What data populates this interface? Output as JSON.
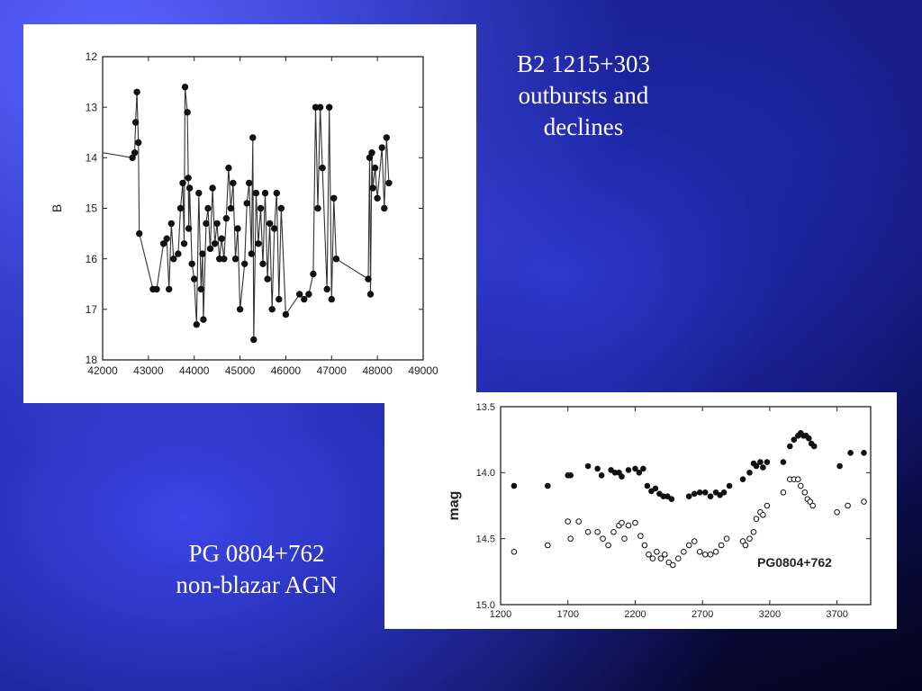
{
  "captions": {
    "top": [
      "B2 1215+303",
      "outbursts and",
      "declines"
    ],
    "bottom": [
      "PG 0804+762",
      "non-blazar AGN"
    ]
  },
  "chart_data": [
    {
      "type": "line",
      "ylabel": "B",
      "xlabel": "",
      "xlim": [
        42000,
        49000
      ],
      "ylim": [
        18,
        12
      ],
      "y_inverted": true,
      "xticks": [
        "42000",
        "43000",
        "44000",
        "45000",
        "46000",
        "47000",
        "48000",
        "49000"
      ],
      "yticks": [
        "12",
        "13",
        "14",
        "15",
        "16",
        "17",
        "18"
      ],
      "series": [
        {
          "x": [
            42000,
            42650,
            42700,
            42720,
            42750,
            42780,
            42800,
            43100,
            43180,
            43330,
            43400,
            43450,
            43500,
            43550,
            43650,
            43700,
            43750,
            43780,
            43800,
            43850,
            43870,
            43880,
            43900,
            43950,
            44000,
            44050,
            44100,
            44150,
            44180,
            44200,
            44260,
            44300,
            44350,
            44400,
            44450,
            44500,
            44550,
            44600,
            44650,
            44700,
            44750,
            44800,
            44850,
            44900,
            44950,
            45000,
            45100,
            45150,
            45200,
            45250,
            45280,
            45300,
            45350,
            45400,
            45450,
            45500,
            45550,
            45600,
            45650,
            45700,
            45750,
            45800,
            45850,
            45900,
            46000,
            46300,
            46400,
            46500,
            46600,
            46650,
            46700,
            46750,
            46800,
            46900,
            46950,
            47000,
            47050,
            47100,
            47800,
            47830,
            47850,
            47880,
            47900,
            47950,
            48000,
            48100,
            48150,
            48200,
            48250
          ],
          "y": [
            13.9,
            14.0,
            13.9,
            13.3,
            12.7,
            13.7,
            15.5,
            16.6,
            16.6,
            15.7,
            15.6,
            16.6,
            15.3,
            16.0,
            15.9,
            15.0,
            14.5,
            15.7,
            12.6,
            13.1,
            14.4,
            15.4,
            14.6,
            16.1,
            16.4,
            17.3,
            14.7,
            16.6,
            15.9,
            17.2,
            15.3,
            15.0,
            15.8,
            14.6,
            15.7,
            15.3,
            16.0,
            15.6,
            16.0,
            15.2,
            14.2,
            15.0,
            14.5,
            16.0,
            15.4,
            17.0,
            16.1,
            14.9,
            14.5,
            15.9,
            13.6,
            17.6,
            14.7,
            15.7,
            15.0,
            16.1,
            14.7,
            16.4,
            15.3,
            17.0,
            15.4,
            14.7,
            16.8,
            15.0,
            17.1,
            16.7,
            16.8,
            16.7,
            16.3,
            13.0,
            15.0,
            13.0,
            14.2,
            16.6,
            13.0,
            16.8,
            14.8,
            16.0,
            16.4,
            14.0,
            16.7,
            13.9,
            14.6,
            14.2,
            14.8,
            13.8,
            15.0,
            13.6,
            14.5
          ]
        }
      ]
    },
    {
      "type": "scatter",
      "ylabel": "mag",
      "xlabel": "",
      "annotation": "PG0804+762",
      "xlim": [
        1200,
        3950
      ],
      "ylim": [
        15.0,
        13.5
      ],
      "y_inverted": true,
      "xticks": [
        "1200",
        "1700",
        "2200",
        "2700",
        "3200",
        "3700"
      ],
      "yticks": [
        "13.5",
        "14.0",
        "14.5",
        "15.0"
      ],
      "series": [
        {
          "marker": "filled",
          "x": [
            1300,
            1550,
            1700,
            1720,
            1850,
            1920,
            1950,
            2020,
            2050,
            2080,
            2100,
            2150,
            2200,
            2230,
            2260,
            2290,
            2320,
            2350,
            2380,
            2410,
            2440,
            2470,
            2600,
            2640,
            2680,
            2720,
            2760,
            2800,
            2830,
            2860,
            2900,
            3000,
            3050,
            3080,
            3100,
            3130,
            3150,
            3180,
            3300,
            3350,
            3380,
            3410,
            3430,
            3450,
            3470,
            3490,
            3510,
            3530,
            3720,
            3800,
            3900
          ],
          "y": [
            14.1,
            14.1,
            14.02,
            14.02,
            13.95,
            13.97,
            14.02,
            13.98,
            14.0,
            14.0,
            14.03,
            13.98,
            13.97,
            14.0,
            13.97,
            14.1,
            14.14,
            14.12,
            14.16,
            14.18,
            14.18,
            14.2,
            14.18,
            14.16,
            14.15,
            14.15,
            14.18,
            14.15,
            14.17,
            14.15,
            14.1,
            14.05,
            14.0,
            13.93,
            13.95,
            13.92,
            13.96,
            13.92,
            13.92,
            13.8,
            13.75,
            13.72,
            13.7,
            13.72,
            13.72,
            13.74,
            13.78,
            13.8,
            13.95,
            13.85,
            13.85
          ]
        },
        {
          "marker": "open",
          "x": [
            1300,
            1550,
            1700,
            1720,
            1780,
            1850,
            1920,
            1960,
            2000,
            2040,
            2080,
            2100,
            2120,
            2150,
            2200,
            2240,
            2270,
            2300,
            2330,
            2360,
            2390,
            2420,
            2450,
            2480,
            2520,
            2560,
            2600,
            2640,
            2680,
            2720,
            2760,
            2800,
            2840,
            2880,
            3000,
            3020,
            3050,
            3080,
            3100,
            3130,
            3150,
            3180,
            3300,
            3350,
            3380,
            3410,
            3430,
            3460,
            3480,
            3500,
            3520,
            3700,
            3780,
            3900
          ],
          "y": [
            14.6,
            14.55,
            14.37,
            14.5,
            14.37,
            14.45,
            14.45,
            14.5,
            14.55,
            14.45,
            14.4,
            14.38,
            14.5,
            14.4,
            14.38,
            14.48,
            14.55,
            14.62,
            14.65,
            14.6,
            14.65,
            14.62,
            14.68,
            14.7,
            14.65,
            14.6,
            14.55,
            14.52,
            14.6,
            14.62,
            14.62,
            14.6,
            14.55,
            14.5,
            14.52,
            14.55,
            14.5,
            14.45,
            14.35,
            14.3,
            14.32,
            14.25,
            14.15,
            14.05,
            14.05,
            14.05,
            14.1,
            14.15,
            14.2,
            14.22,
            14.25,
            14.3,
            14.25,
            14.22
          ]
        }
      ]
    }
  ]
}
